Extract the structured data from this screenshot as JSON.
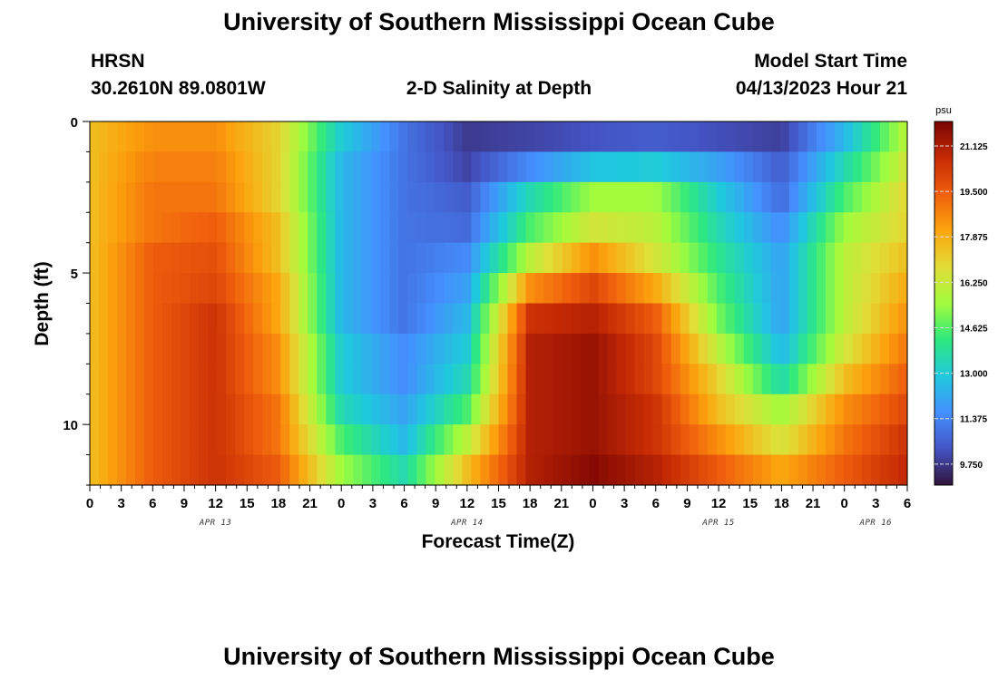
{
  "header": {
    "title": "University of Southern Mississippi Ocean Cube",
    "station": "HRSN",
    "coords": "30.2610N  89.0801W",
    "plot_title": "2-D Salinity at Depth",
    "model_start_label": "Model Start Time",
    "model_start_value": "04/13/2023 Hour 21"
  },
  "footer": {
    "title": "University of Southern Mississippi Ocean Cube"
  },
  "chart_data": {
    "type": "heatmap",
    "title": "2-D Salinity at Depth",
    "xlabel": "Forecast Time(Z)",
    "ylabel": "Depth (ft)",
    "x_tick_labels": [
      "0",
      "3",
      "6",
      "9",
      "12",
      "15",
      "18",
      "21",
      "0",
      "3",
      "6",
      "9",
      "12",
      "15",
      "18",
      "21",
      "0",
      "3",
      "6",
      "9",
      "12",
      "15",
      "18",
      "21",
      "0",
      "3",
      "6"
    ],
    "date_labels": [
      {
        "text": "APR 13",
        "tick_index": 4
      },
      {
        "text": "APR 14",
        "tick_index": 12
      },
      {
        "text": "APR 15",
        "tick_index": 20
      },
      {
        "text": "APR 16",
        "tick_index": 25
      }
    ],
    "y_ticks": [
      0,
      5,
      10
    ],
    "ylim": [
      0,
      12
    ],
    "depth_layers": [
      0.5,
      1.5,
      2.5,
      3.5,
      4.5,
      5.5,
      6.5,
      7.5,
      8.5,
      9.5,
      10.5,
      11.5
    ],
    "time_hours": [
      0,
      6,
      12,
      18,
      24,
      30,
      36,
      42,
      48,
      54,
      60,
      66,
      72,
      78
    ],
    "salinity_psu": [
      [
        17.5,
        18.5,
        18.5,
        17.0,
        13.0,
        11.0,
        9.8,
        10.0,
        10.3,
        10.5,
        10.2,
        9.9,
        12.5,
        16.0
      ],
      [
        17.5,
        18.8,
        18.8,
        17.0,
        12.5,
        11.0,
        10.0,
        11.5,
        12.8,
        13.0,
        12.0,
        10.5,
        13.5,
        16.5
      ],
      [
        17.5,
        19.0,
        19.0,
        17.0,
        12.5,
        11.0,
        10.5,
        13.5,
        15.5,
        15.5,
        13.0,
        10.8,
        14.5,
        17.0
      ],
      [
        17.5,
        19.0,
        19.5,
        17.5,
        12.5,
        11.0,
        10.8,
        14.5,
        16.5,
        16.0,
        13.5,
        11.5,
        15.5,
        17.0
      ],
      [
        17.5,
        19.5,
        19.8,
        17.5,
        12.5,
        11.0,
        11.5,
        16.0,
        18.5,
        16.5,
        14.0,
        12.0,
        16.0,
        17.5
      ],
      [
        17.5,
        19.5,
        20.0,
        18.0,
        12.5,
        11.0,
        12.0,
        18.5,
        20.0,
        18.0,
        14.5,
        12.0,
        16.0,
        18.0
      ],
      [
        17.5,
        19.5,
        20.5,
        18.0,
        12.5,
        11.0,
        12.5,
        20.5,
        21.0,
        19.5,
        15.0,
        12.0,
        16.0,
        18.5
      ],
      [
        17.5,
        19.5,
        20.5,
        18.5,
        13.0,
        11.5,
        13.0,
        21.0,
        21.5,
        20.0,
        16.0,
        12.5,
        16.5,
        19.0
      ],
      [
        17.5,
        19.5,
        20.5,
        18.5,
        13.0,
        11.5,
        13.5,
        21.0,
        21.5,
        20.0,
        17.0,
        13.5,
        17.5,
        19.5
      ],
      [
        17.5,
        19.5,
        20.5,
        19.0,
        13.5,
        12.0,
        14.5,
        21.0,
        21.5,
        20.5,
        17.5,
        15.5,
        18.5,
        20.0
      ],
      [
        17.5,
        19.5,
        20.5,
        19.0,
        14.5,
        12.5,
        16.0,
        21.0,
        21.5,
        20.5,
        18.5,
        16.5,
        19.0,
        20.5
      ],
      [
        17.5,
        19.5,
        20.5,
        19.5,
        15.5,
        13.5,
        17.5,
        21.0,
        21.8,
        21.0,
        19.5,
        18.0,
        19.5,
        20.8
      ]
    ],
    "colorbar": {
      "unit": "psu",
      "range": [
        9.0,
        22.0
      ],
      "ticks": [
        "21.125",
        "19.500",
        "17.875",
        "16.250",
        "14.625",
        "13.000",
        "11.375",
        "9.750"
      ]
    },
    "colormap": [
      "#30123b",
      "#4454c4",
      "#4490fe",
      "#1fc9dd",
      "#2ee97f",
      "#a2fc3c",
      "#e1dd37",
      "#fca40d",
      "#f0600d",
      "#c52a04",
      "#7a0403"
    ]
  }
}
